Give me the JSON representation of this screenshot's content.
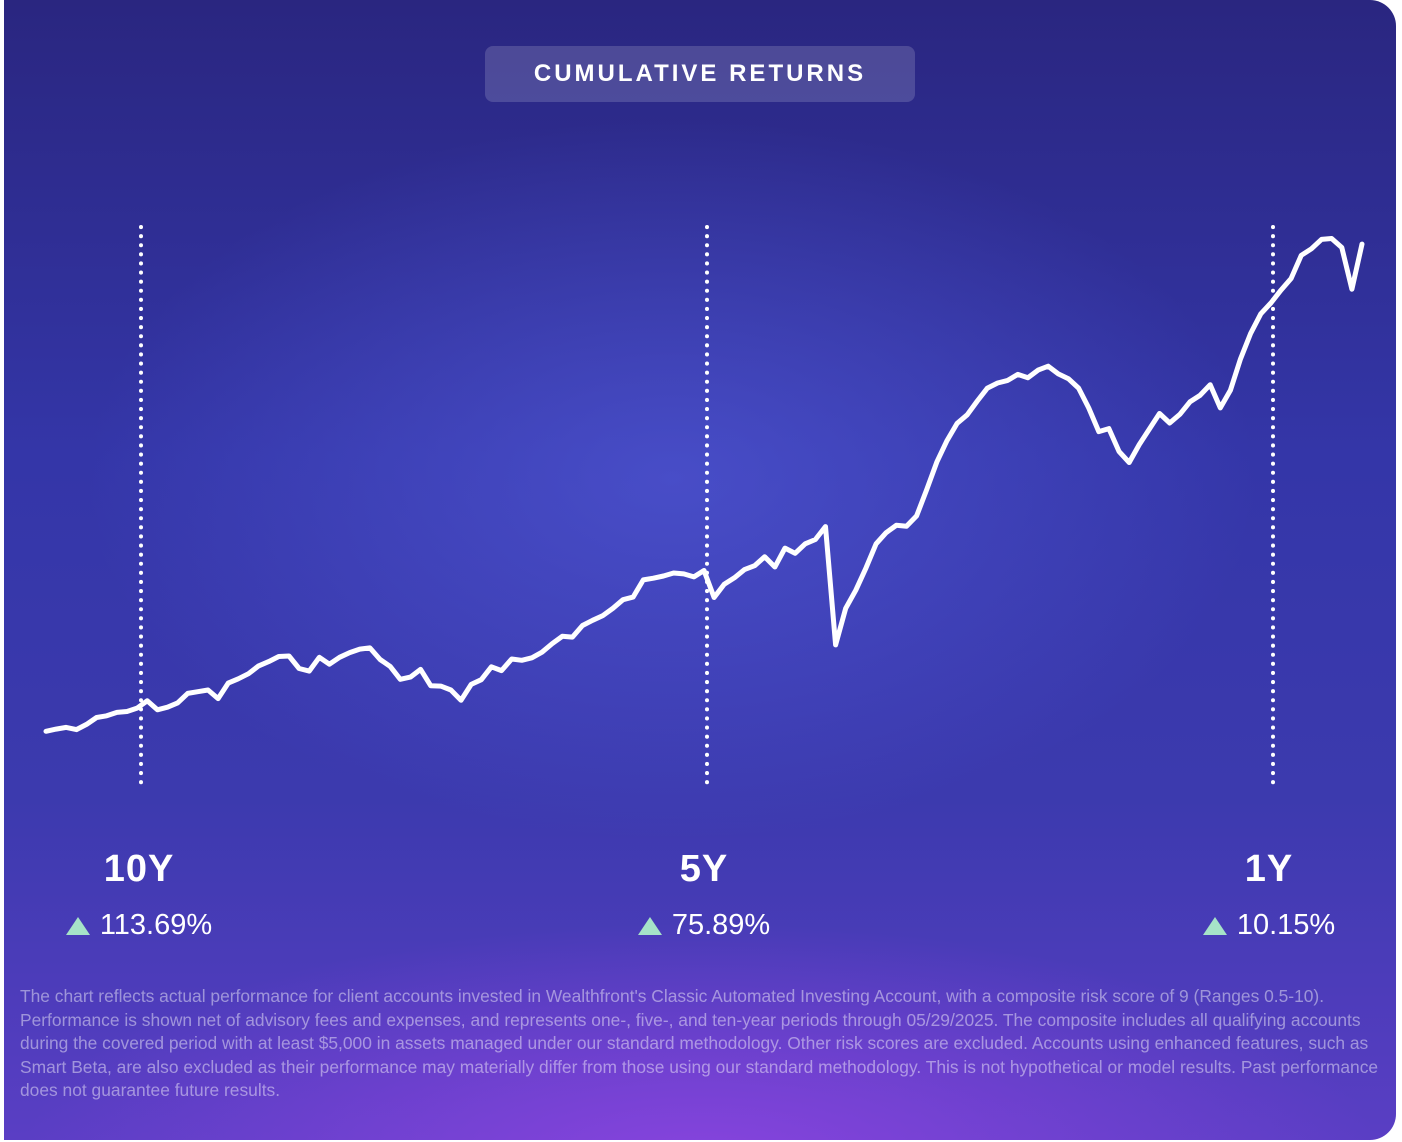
{
  "title": "CUMULATIVE RETURNS",
  "colors": {
    "line": "#ffffff",
    "markers": "#ffffff",
    "up_arrow": "#a6e3c8"
  },
  "periods": [
    {
      "label": "10Y",
      "return": "113.69%"
    },
    {
      "label": "5Y",
      "return": "75.89%"
    },
    {
      "label": "1Y",
      "return": "10.15%"
    }
  ],
  "disclaimer": "The chart reflects actual performance for client accounts invested in Wealthfront's Classic Automated Investing Account, with a composite risk score of 9 (Ranges 0.5-10). Performance is shown net of advisory fees and expenses, and represents one-, five-, and ten-year periods through 05/29/2025. The composite includes all qualifying accounts during the covered period with at least $5,000 in assets managed under our standard methodology. Other risk scores are excluded. Accounts using enhanced features, such as Smart Beta, are also excluded as their performance may materially differ from those using our standard methodology. This is not hypothetical or model results. Past performance does not guarantee future results.",
  "chart_data": {
    "type": "line",
    "title": "CUMULATIVE RETURNS",
    "xlabel": "",
    "ylabel": "",
    "grid": false,
    "legend": "none",
    "y_axis_labeled": false,
    "markers": [
      {
        "label": "10Y",
        "value": "113.69%"
      },
      {
        "label": "5Y",
        "value": "75.89%"
      },
      {
        "label": "1Y",
        "value": "10.15%"
      }
    ],
    "series": [
      {
        "values": [
          0.4,
          0.9,
          1.3,
          0.8,
          2.0,
          3.6,
          4.0,
          4.8,
          5.0,
          5.8,
          7.5,
          5.4,
          6.0,
          7.0,
          9.2,
          9.6,
          10.0,
          8.0,
          11.6,
          12.6,
          13.8,
          15.6,
          16.6,
          17.8,
          17.9,
          15.0,
          14.4,
          17.6,
          16.0,
          17.6,
          18.7,
          19.5,
          19.8,
          17.1,
          15.5,
          12.5,
          13.0,
          14.8,
          11.0,
          10.9,
          10.0,
          7.6,
          11.3,
          12.4,
          15.4,
          14.5,
          17.2,
          16.9,
          17.5,
          18.8,
          20.8,
          22.5,
          22.3,
          25.0,
          26.2,
          27.3,
          29.0,
          31.0,
          31.6,
          35.6,
          36.0,
          36.5,
          37.2,
          37.0,
          36.3,
          37.8,
          31.5,
          34.6,
          36.1,
          38.0,
          38.9,
          41.0,
          38.6,
          43.0,
          41.8,
          44.0,
          45.0,
          48.0,
          20.5,
          29.0,
          33.2,
          38.4,
          44.0,
          46.6,
          48.3,
          48.1,
          50.5,
          56.6,
          63.0,
          68.0,
          72.0,
          74.0,
          77.2,
          80.2,
          81.4,
          82.0,
          83.4,
          82.6,
          84.4,
          85.3,
          83.5,
          82.4,
          80.2,
          75.6,
          70.1,
          70.8,
          65.5,
          62.9,
          67.1,
          70.7,
          74.3,
          72.1,
          74.1,
          77.0,
          78.5,
          81.0,
          75.6,
          79.7,
          87.0,
          92.9,
          97.5,
          100.0,
          103.0,
          105.7,
          111.1,
          112.6,
          114.8,
          115.0,
          112.9,
          103.2,
          113.7
        ]
      }
    ]
  }
}
